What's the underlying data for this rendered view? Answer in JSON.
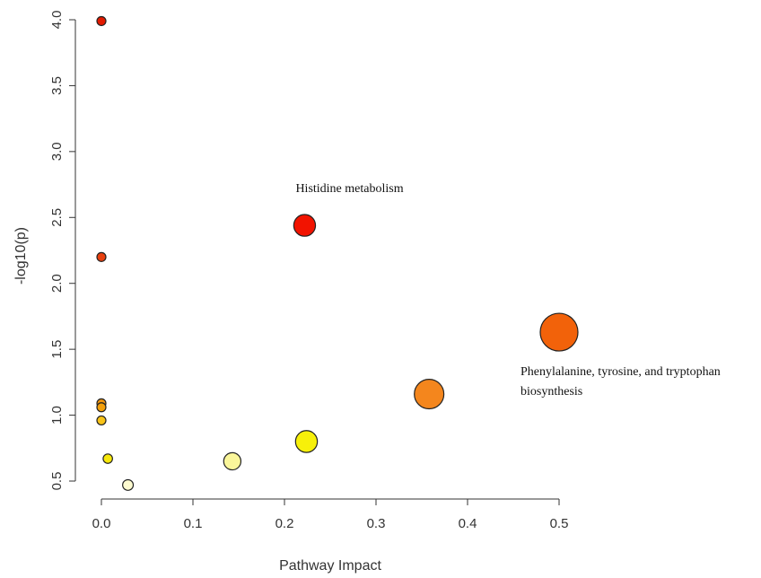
{
  "chart_data": {
    "type": "scatter",
    "title": "",
    "xlabel": "Pathway Impact",
    "ylabel": "-log10(p)",
    "xlim": [
      0,
      0.5
    ],
    "ylim": [
      0.45,
      4.0
    ],
    "x_ticks": [
      "0.0",
      "0.1",
      "0.2",
      "0.3",
      "0.4",
      "0.5"
    ],
    "y_ticks": [
      "0.5",
      "1.0",
      "1.5",
      "2.0",
      "2.5",
      "3.0",
      "3.5",
      "4.0"
    ],
    "grid": false,
    "legend": "none",
    "points": [
      {
        "x": 0.0,
        "y": 3.99,
        "color": "#e31a00"
      },
      {
        "x": 0.0,
        "y": 2.2,
        "color": "#e8400e"
      },
      {
        "x": 0.0,
        "y": 1.09,
        "color": "#f2960d"
      },
      {
        "x": 0.0,
        "y": 1.06,
        "color": "#f4a00b"
      },
      {
        "x": 0.0,
        "y": 0.96,
        "color": "#f8c318"
      },
      {
        "x": 0.007,
        "y": 0.67,
        "color": "#f7e80a"
      },
      {
        "x": 0.029,
        "y": 0.47,
        "color": "#fdfbd0"
      },
      {
        "x": 0.143,
        "y": 0.65,
        "color": "#faf69a"
      },
      {
        "x": 0.222,
        "y": 2.44,
        "color": "#f21300"
      },
      {
        "x": 0.224,
        "y": 0.8,
        "color": "#f7f00a"
      },
      {
        "x": 0.358,
        "y": 1.16,
        "color": "#f4861d"
      },
      {
        "x": 0.5,
        "y": 1.63,
        "color": "#f2620a"
      }
    ],
    "annotations": [
      {
        "point": 8,
        "lines": [
          "Histidine metabolism"
        ]
      },
      {
        "point": 11,
        "lines": [
          "Phenylalanine, tyrosine, and tryptophan",
          "biosynthesis"
        ]
      }
    ]
  }
}
